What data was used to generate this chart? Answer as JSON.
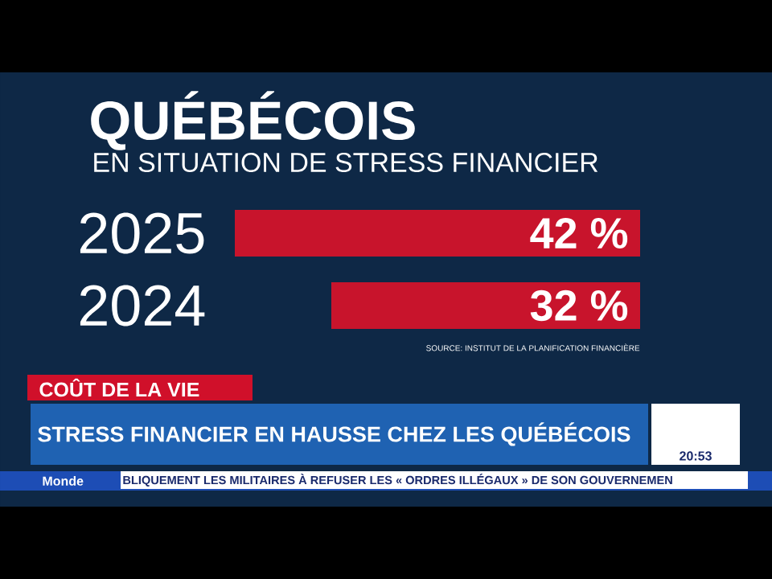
{
  "chart_data": {
    "type": "bar",
    "orientation": "horizontal",
    "tick_labels": "y",
    "title": "QUÉBÉCOIS",
    "subtitle": "EN SITUATION DE STRESS FINANCIER",
    "categories": [
      "2025",
      "2024"
    ],
    "values": [
      42,
      32
    ],
    "value_labels": [
      "42 %",
      "32 %"
    ],
    "color": "#c8142c",
    "annotations": [
      "SOURCE: INSTITUT DE LA PLANIFICATION FINANCIÈRE",
      "COÛT DE LA VIE",
      "STRESS FINANCIER EN HAUSSE CHEZ LES QUÉBÉCOIS",
      "Monde",
      "BLIQUEMENT LES MILITAIRES À REFUSER LES « ORDRES ILLÉGAUX » DE SON GOUVERNEMEN",
      "20:53"
    ]
  }
}
